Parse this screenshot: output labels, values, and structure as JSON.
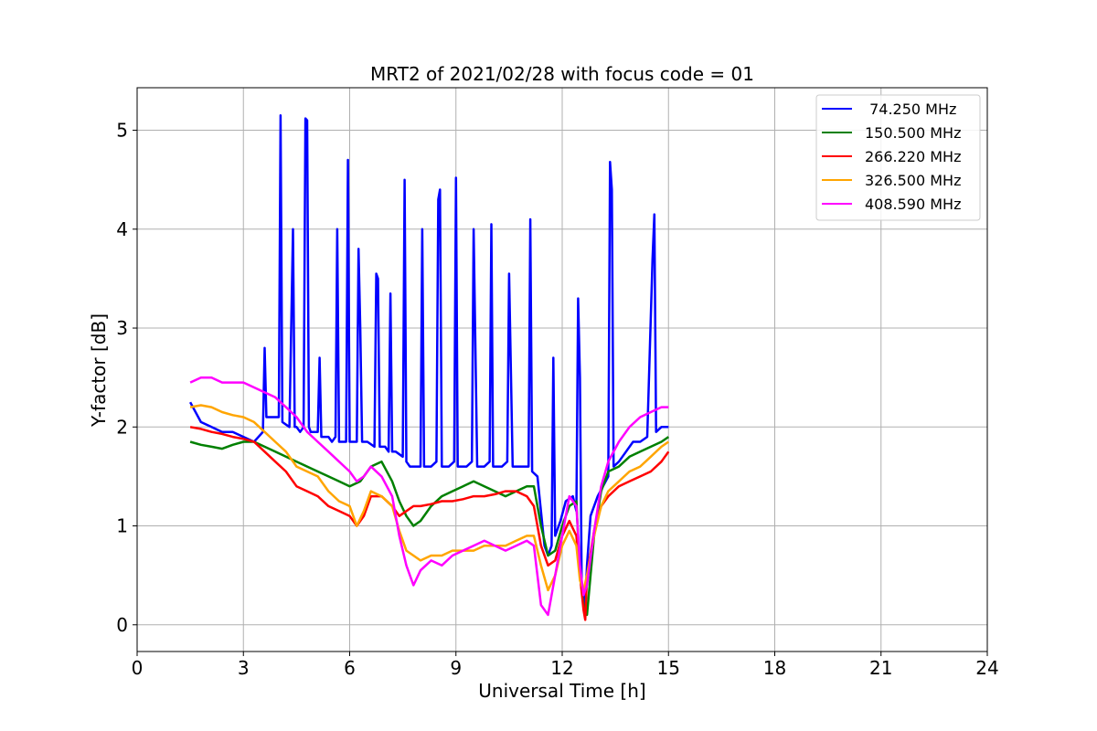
{
  "chart_data": {
    "type": "line",
    "title": "MRT2 of 2021/02/28 with focus code = 01",
    "xlabel": "Universal Time [h]",
    "ylabel": "Y-factor [dB]",
    "xlim": [
      0,
      24
    ],
    "ylim": [
      -0.27,
      5.43
    ],
    "xticks": [
      0,
      3,
      6,
      9,
      12,
      15,
      18,
      21,
      24
    ],
    "xtick_labels": [
      "0",
      "3",
      "6",
      "9",
      "12",
      "15",
      "18",
      "21",
      "24"
    ],
    "yticks": [
      0,
      1,
      2,
      3,
      4,
      5
    ],
    "ytick_labels": [
      "0",
      "1",
      "2",
      "3",
      "4",
      "5"
    ],
    "grid": true,
    "legend_position": "top-right",
    "series": [
      {
        "name": " 74.250 MHz",
        "color": "#0000ff",
        "x": [
          1.5,
          1.8,
          2.1,
          2.4,
          2.7,
          3.0,
          3.3,
          3.55,
          3.6,
          3.65,
          3.75,
          4.0,
          4.05,
          4.1,
          4.3,
          4.4,
          4.45,
          4.5,
          4.6,
          4.7,
          4.75,
          4.8,
          4.85,
          4.9,
          5.1,
          5.15,
          5.2,
          5.4,
          5.5,
          5.6,
          5.65,
          5.7,
          5.9,
          5.95,
          6.0,
          6.05,
          6.2,
          6.25,
          6.3,
          6.35,
          6.5,
          6.7,
          6.75,
          6.8,
          6.85,
          7.0,
          7.1,
          7.15,
          7.2,
          7.3,
          7.5,
          7.55,
          7.6,
          7.7,
          7.9,
          8.0,
          8.05,
          8.1,
          8.3,
          8.45,
          8.5,
          8.55,
          8.6,
          8.8,
          8.95,
          9.0,
          9.05,
          9.3,
          9.45,
          9.5,
          9.6,
          9.8,
          9.95,
          10.0,
          10.05,
          10.3,
          10.45,
          10.5,
          10.6,
          10.9,
          11.05,
          11.1,
          11.15,
          11.3,
          11.5,
          11.6,
          11.7,
          11.75,
          11.8,
          11.95,
          12.1,
          12.3,
          12.4,
          12.45,
          12.5,
          12.55,
          12.65,
          12.7,
          12.8,
          13.0,
          13.3,
          13.35,
          13.4,
          13.45,
          13.6,
          13.8,
          14.0,
          14.2,
          14.4,
          14.55,
          14.6,
          14.65,
          14.8,
          15.0
        ],
        "y": [
          2.25,
          2.05,
          2.0,
          1.95,
          1.95,
          1.9,
          1.85,
          1.95,
          2.8,
          2.1,
          2.1,
          2.1,
          5.15,
          2.05,
          2.0,
          4.0,
          2.0,
          2.0,
          1.95,
          2.0,
          5.12,
          5.1,
          2.0,
          1.95,
          1.95,
          2.7,
          1.9,
          1.9,
          1.85,
          1.9,
          4.0,
          1.85,
          1.85,
          4.7,
          1.85,
          1.85,
          1.85,
          3.8,
          3.0,
          1.85,
          1.85,
          1.8,
          3.55,
          3.5,
          1.8,
          1.8,
          1.75,
          3.35,
          1.75,
          1.75,
          1.7,
          4.5,
          1.65,
          1.6,
          1.6,
          1.6,
          4.0,
          1.6,
          1.6,
          1.65,
          4.3,
          4.4,
          1.6,
          1.6,
          1.65,
          4.52,
          1.6,
          1.6,
          1.65,
          4.0,
          1.6,
          1.6,
          1.65,
          4.05,
          1.6,
          1.6,
          1.65,
          3.55,
          1.6,
          1.6,
          1.6,
          4.1,
          1.55,
          1.5,
          0.8,
          0.7,
          0.8,
          2.7,
          0.9,
          1.05,
          1.25,
          1.3,
          1.15,
          3.3,
          2.5,
          0.4,
          0.2,
          0.6,
          1.1,
          1.3,
          1.5,
          4.68,
          4.4,
          1.6,
          1.65,
          1.75,
          1.85,
          1.85,
          1.9,
          3.7,
          4.15,
          1.95,
          2.0,
          2.0
        ]
      },
      {
        "name": "150.500 MHz",
        "color": "#008000",
        "x": [
          1.5,
          1.8,
          2.1,
          2.4,
          2.7,
          3.0,
          3.3,
          3.6,
          3.9,
          4.2,
          4.5,
          4.8,
          5.1,
          5.4,
          5.7,
          6.0,
          6.3,
          6.6,
          6.9,
          7.2,
          7.4,
          7.6,
          7.8,
          8.0,
          8.3,
          8.6,
          8.9,
          9.2,
          9.5,
          9.8,
          10.1,
          10.4,
          10.7,
          11.0,
          11.2,
          11.4,
          11.6,
          11.8,
          12.0,
          12.2,
          12.4,
          12.5,
          12.6,
          12.7,
          12.9,
          13.1,
          13.3,
          13.6,
          13.9,
          14.2,
          14.5,
          14.8,
          15.0
        ],
        "y": [
          1.85,
          1.82,
          1.8,
          1.78,
          1.82,
          1.85,
          1.85,
          1.8,
          1.75,
          1.7,
          1.65,
          1.6,
          1.55,
          1.5,
          1.45,
          1.4,
          1.45,
          1.6,
          1.65,
          1.45,
          1.25,
          1.1,
          1.0,
          1.05,
          1.2,
          1.3,
          1.35,
          1.4,
          1.45,
          1.4,
          1.35,
          1.3,
          1.35,
          1.4,
          1.4,
          1.0,
          0.7,
          0.75,
          1.0,
          1.2,
          1.25,
          0.5,
          0.2,
          0.1,
          0.9,
          1.35,
          1.55,
          1.6,
          1.7,
          1.75,
          1.8,
          1.85,
          1.9
        ]
      },
      {
        "name": "266.220 MHz",
        "color": "#ff0000",
        "x": [
          1.5,
          1.8,
          2.1,
          2.4,
          2.7,
          3.0,
          3.3,
          3.6,
          3.9,
          4.2,
          4.5,
          4.8,
          5.1,
          5.4,
          5.7,
          6.0,
          6.2,
          6.4,
          6.6,
          6.9,
          7.2,
          7.4,
          7.6,
          7.8,
          8.0,
          8.3,
          8.6,
          8.9,
          9.2,
          9.5,
          9.8,
          10.1,
          10.4,
          10.7,
          11.0,
          11.2,
          11.4,
          11.6,
          11.8,
          12.0,
          12.2,
          12.4,
          12.5,
          12.6,
          12.65,
          12.7,
          12.9,
          13.1,
          13.3,
          13.6,
          13.9,
          14.2,
          14.5,
          14.8,
          15.0
        ],
        "y": [
          2.0,
          1.98,
          1.95,
          1.93,
          1.9,
          1.88,
          1.85,
          1.75,
          1.65,
          1.55,
          1.4,
          1.35,
          1.3,
          1.2,
          1.15,
          1.1,
          1.0,
          1.1,
          1.3,
          1.3,
          1.2,
          1.1,
          1.15,
          1.2,
          1.2,
          1.22,
          1.25,
          1.25,
          1.27,
          1.3,
          1.3,
          1.32,
          1.35,
          1.35,
          1.3,
          1.2,
          0.8,
          0.6,
          0.65,
          0.9,
          1.05,
          0.9,
          0.5,
          0.15,
          0.05,
          0.5,
          0.95,
          1.2,
          1.3,
          1.4,
          1.45,
          1.5,
          1.55,
          1.65,
          1.75
        ]
      },
      {
        "name": "326.500 MHz",
        "color": "#ffa500",
        "x": [
          1.5,
          1.8,
          2.1,
          2.4,
          2.7,
          3.0,
          3.3,
          3.6,
          3.9,
          4.2,
          4.5,
          4.8,
          5.1,
          5.4,
          5.7,
          6.0,
          6.2,
          6.4,
          6.6,
          6.9,
          7.2,
          7.4,
          7.6,
          7.8,
          8.0,
          8.3,
          8.6,
          8.9,
          9.2,
          9.5,
          9.8,
          10.1,
          10.4,
          10.7,
          11.0,
          11.2,
          11.4,
          11.6,
          11.8,
          12.0,
          12.2,
          12.4,
          12.5,
          12.6,
          12.7,
          12.9,
          13.1,
          13.3,
          13.6,
          13.9,
          14.2,
          14.5,
          14.8,
          15.0
        ],
        "y": [
          2.2,
          2.22,
          2.2,
          2.15,
          2.12,
          2.1,
          2.05,
          1.95,
          1.85,
          1.75,
          1.6,
          1.55,
          1.5,
          1.35,
          1.25,
          1.2,
          1.0,
          1.15,
          1.35,
          1.3,
          1.2,
          0.95,
          0.75,
          0.7,
          0.65,
          0.7,
          0.7,
          0.75,
          0.75,
          0.75,
          0.8,
          0.8,
          0.8,
          0.85,
          0.9,
          0.9,
          0.6,
          0.35,
          0.5,
          0.8,
          0.95,
          0.8,
          0.45,
          0.35,
          0.5,
          0.9,
          1.2,
          1.35,
          1.45,
          1.55,
          1.6,
          1.7,
          1.8,
          1.85
        ]
      },
      {
        "name": "408.590 MHz",
        "color": "#ff00ff",
        "x": [
          1.5,
          1.8,
          2.1,
          2.4,
          2.7,
          3.0,
          3.3,
          3.6,
          3.9,
          4.2,
          4.5,
          4.8,
          5.1,
          5.4,
          5.7,
          6.0,
          6.2,
          6.4,
          6.6,
          6.9,
          7.2,
          7.4,
          7.6,
          7.8,
          8.0,
          8.3,
          8.6,
          8.9,
          9.2,
          9.5,
          9.8,
          10.1,
          10.4,
          10.7,
          11.0,
          11.2,
          11.4,
          11.6,
          11.8,
          12.0,
          12.2,
          12.4,
          12.5,
          12.6,
          12.7,
          12.9,
          13.1,
          13.3,
          13.6,
          13.9,
          14.2,
          14.5,
          14.8,
          15.0
        ],
        "y": [
          2.45,
          2.5,
          2.5,
          2.45,
          2.45,
          2.45,
          2.4,
          2.35,
          2.3,
          2.2,
          2.1,
          1.95,
          1.85,
          1.75,
          1.65,
          1.55,
          1.45,
          1.5,
          1.6,
          1.5,
          1.3,
          0.9,
          0.6,
          0.4,
          0.55,
          0.65,
          0.6,
          0.7,
          0.75,
          0.8,
          0.85,
          0.8,
          0.75,
          0.8,
          0.85,
          0.8,
          0.2,
          0.1,
          0.5,
          0.9,
          1.3,
          1.2,
          0.6,
          0.3,
          0.4,
          0.95,
          1.4,
          1.65,
          1.85,
          2.0,
          2.1,
          2.15,
          2.2,
          2.2
        ]
      }
    ]
  }
}
